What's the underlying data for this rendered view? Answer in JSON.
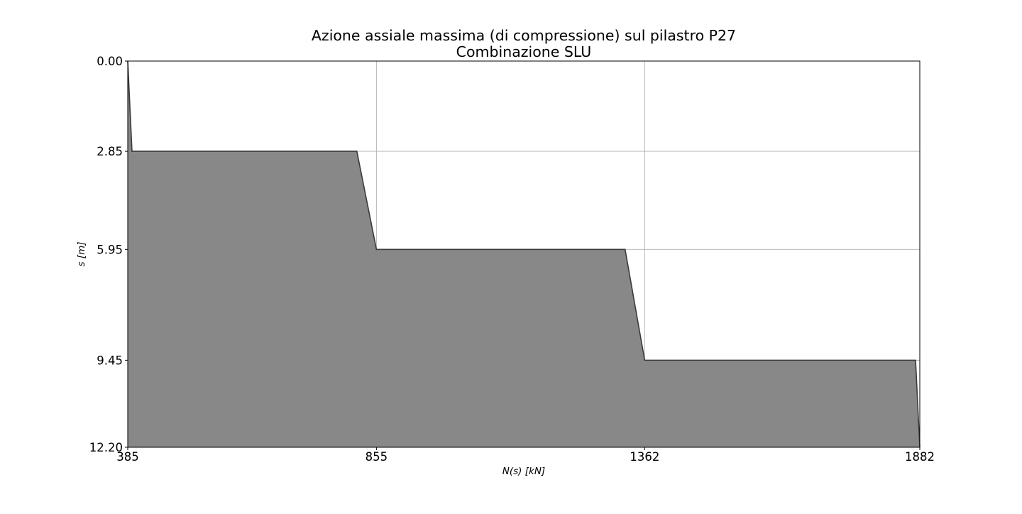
{
  "chart_data": {
    "type": "area",
    "title": "Azione assiale massima (di compressione) sul pilastro P27",
    "subtitle": "Combinazione SLU",
    "xlabel": "N(s) [kN]",
    "ylabel": "s [m]",
    "xlim": [
      385,
      1882
    ],
    "ylim": [
      0,
      12.2
    ],
    "y_inverted": true,
    "grid": true,
    "xticks": [
      385,
      855,
      1362,
      1882
    ],
    "xtick_labels": [
      "385",
      "855",
      "1362",
      "1882"
    ],
    "yticks": [
      0,
      2.85,
      5.95,
      9.45,
      12.2
    ],
    "ytick_labels": [
      "0.00",
      "2.85",
      "5.95",
      "9.45",
      "12.20"
    ],
    "series": [
      {
        "x": [
          385,
          393,
          818,
          855,
          1325,
          1362,
          1874,
          1882
        ],
        "y": [
          0,
          2.85,
          2.85,
          5.95,
          5.95,
          9.45,
          9.45,
          12.2
        ]
      }
    ],
    "colors": {
      "fill": "#888888",
      "edge": "#3a3a3a"
    }
  }
}
